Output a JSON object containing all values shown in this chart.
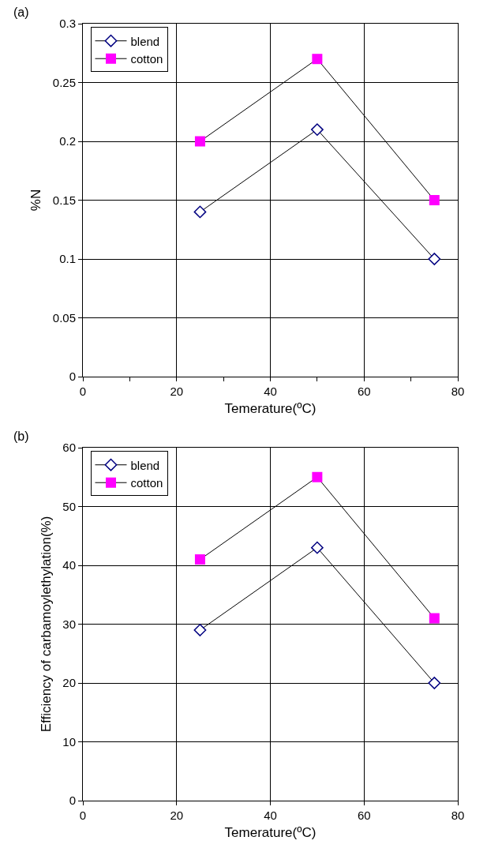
{
  "chart_data": [
    {
      "type": "line",
      "xlabel": "Temerature(ºC)",
      "ylabel": "%N",
      "annotations": [
        "(a)"
      ],
      "x": [
        25,
        50,
        75
      ],
      "series": [
        {
          "name": "blend",
          "color": "#000080",
          "values": [
            0.14,
            0.21,
            0.1
          ],
          "marker": "diamond"
        },
        {
          "name": "cotton",
          "color": "#ff00ff",
          "values": [
            0.2,
            0.27,
            0.15
          ],
          "marker": "square"
        }
      ],
      "xlim": [
        0,
        80
      ],
      "xticks": [
        0,
        {
          "value": 10,
          "label": null
        },
        20,
        {
          "value": 30,
          "label": null
        },
        40,
        {
          "value": 50,
          "label": null
        },
        60,
        {
          "value": 70,
          "label": null
        },
        80
      ],
      "ylim": [
        0,
        0.3
      ],
      "yticks": [
        0,
        0.05,
        0.1,
        0.15,
        0.2,
        0.25,
        0.3
      ],
      "grid": true,
      "legend": "top left",
      "line_style": "solid"
    },
    {
      "type": "line",
      "xlabel": "Temerature(ºC)",
      "ylabel": "Efficiency of carbamoylethylation(%)",
      "annotations": [
        "(b)"
      ],
      "x": [
        25,
        50,
        75
      ],
      "series": [
        {
          "name": "blend",
          "color": "#000080",
          "values": [
            29,
            43,
            20
          ],
          "marker": "diamond"
        },
        {
          "name": "cotton",
          "color": "#ff00ff",
          "values": [
            41,
            55,
            31
          ],
          "marker": "square"
        }
      ],
      "xlim": [
        0,
        80
      ],
      "xticks": [
        0,
        20,
        40,
        60,
        80
      ],
      "ylim": [
        0,
        60
      ],
      "yticks": [
        0,
        10,
        20,
        30,
        40,
        50,
        60
      ],
      "grid": true,
      "legend": "top left",
      "line_style": "solid"
    }
  ]
}
